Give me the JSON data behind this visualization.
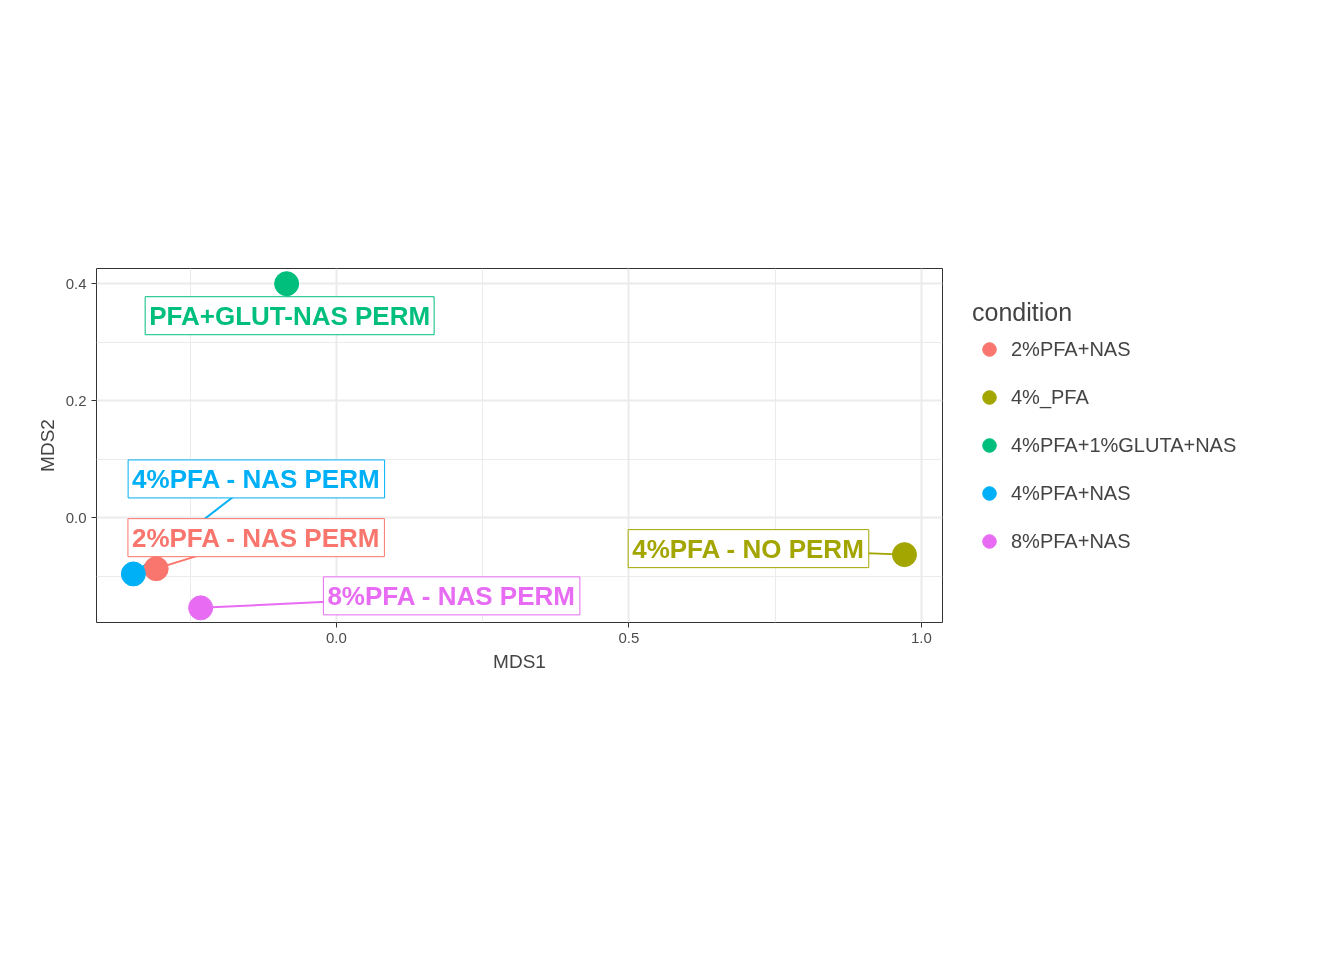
{
  "chart_data": {
    "type": "scatter",
    "xlabel": "MDS1",
    "ylabel": "MDS2",
    "legend_title": "condition",
    "legend": "right",
    "grid": true,
    "marker": "circle",
    "xlim": [
      -0.41,
      1.036
    ],
    "ylim": [
      -0.179,
      0.426
    ],
    "xticks": [
      {
        "value": 0,
        "label": "0.0"
      },
      0.5,
      {
        "value": 1,
        "label": "1.0"
      }
    ],
    "yticks": [
      {
        "value": 0,
        "label": "0.0"
      },
      0.2,
      0.4
    ],
    "series": [
      {
        "name": "2%PFA+NAS",
        "color": "#f8766d",
        "x": [
          -0.308
        ],
        "values": [
          -0.087
        ]
      },
      {
        "name": "4%_PFA",
        "color": "#a3a500",
        "x": [
          0.971
        ],
        "values": [
          -0.063
        ]
      },
      {
        "name": "4%PFA+1%GLUTA+NAS",
        "color": "#00bf7d",
        "x": [
          -0.085
        ],
        "values": [
          0.4
        ]
      },
      {
        "name": "4%PFA+NAS",
        "color": "#00b0f6",
        "x": [
          -0.347
        ],
        "values": [
          -0.096
        ]
      },
      {
        "name": "8%PFA+NAS",
        "color": "#e76bf3",
        "x": [
          -0.232
        ],
        "values": [
          -0.154
        ]
      }
    ],
    "annotations": [
      {
        "text": "2%PFA - NAS PERM",
        "x": -0.308,
        "y": -0.087
      },
      {
        "text": "4%PFA - NO PERM",
        "x": 0.971,
        "y": -0.063
      },
      {
        "text": "PFA+GLUT-NAS PERM",
        "x": -0.085,
        "y": 0.4
      },
      {
        "text": "4%PFA - NAS PERM",
        "x": -0.347,
        "y": -0.096
      },
      {
        "text": "8%PFA - NAS PERM",
        "x": -0.232,
        "y": -0.154
      }
    ]
  }
}
